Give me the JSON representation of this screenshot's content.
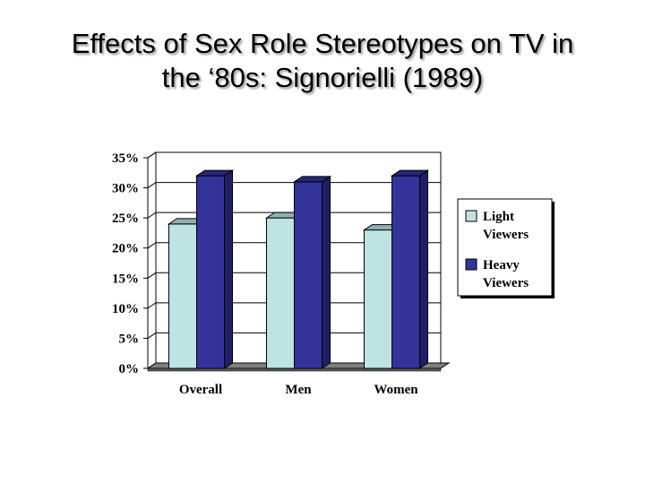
{
  "slide": {
    "title_line1": "Effects of Sex Role Stereotypes on TV in",
    "title_line2": "the ‘80s: Signorielli (1989)"
  },
  "chart_data": {
    "type": "bar",
    "categories": [
      "Overall",
      "Men",
      "Women"
    ],
    "series": [
      {
        "name": "Light Viewers",
        "legend_lines": [
          "Light",
          "Viewers"
        ],
        "values": [
          24,
          25,
          23
        ],
        "color": "#bfe3e3",
        "top_color": "#8fb0b0",
        "side_color": "#93b3b3"
      },
      {
        "name": "Heavy Viewers",
        "legend_lines": [
          "Heavy",
          "Viewers"
        ],
        "values": [
          32,
          31,
          32
        ],
        "color": "#33339a",
        "top_color": "#26267a",
        "side_color": "#1f1f66"
      }
    ],
    "yticks": [
      "0%",
      "5%",
      "10%",
      "15%",
      "20%",
      "25%",
      "30%",
      "35%"
    ],
    "ylim": [
      0,
      35
    ],
    "unit": "%",
    "grid": true,
    "legend_position": "right",
    "floor_color": "#808080"
  }
}
